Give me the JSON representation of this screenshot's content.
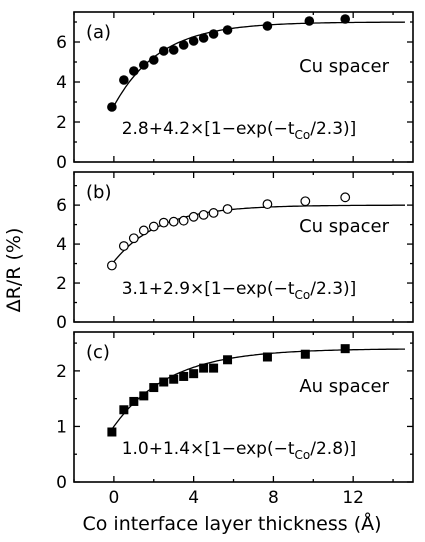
{
  "chart_data": [
    {
      "type": "scatter",
      "panel_label": "(a)",
      "spacer_label": "Cu spacer",
      "fit_label": "2.8+4.2×[1−exp(−t",
      "fit_sub": "Co",
      "fit_tail": "/2.3)]",
      "fit": {
        "a": 2.8,
        "b": 4.2,
        "tau": 2.3
      },
      "marker": "filled-circle",
      "ylim": [
        0,
        7.5
      ],
      "yticks": [
        "0",
        "2",
        "4",
        "6"
      ],
      "yticks_values": [
        0,
        2,
        4,
        6
      ],
      "x": [
        -0.1,
        0.5,
        1.0,
        1.5,
        2.0,
        2.5,
        3.0,
        3.5,
        4.0,
        4.5,
        5.0,
        5.7,
        7.7,
        9.8,
        11.6
      ],
      "y": [
        2.75,
        4.1,
        4.55,
        4.85,
        5.1,
        5.55,
        5.6,
        5.85,
        6.05,
        6.2,
        6.4,
        6.6,
        6.8,
        7.05,
        7.15
      ]
    },
    {
      "type": "scatter",
      "panel_label": "(b)",
      "spacer_label": "Cu spacer",
      "fit_label": "3.1+2.9×[1−exp(−t",
      "fit_sub": "Co",
      "fit_tail": "/2.3)]",
      "fit": {
        "a": 3.1,
        "b": 2.9,
        "tau": 2.3
      },
      "marker": "open-circle",
      "ylim": [
        0,
        7.7
      ],
      "yticks": [
        "0",
        "2",
        "4",
        "6"
      ],
      "yticks_values": [
        0,
        2,
        4,
        6
      ],
      "x": [
        -0.1,
        0.5,
        1.0,
        1.5,
        2.0,
        2.5,
        3.0,
        3.5,
        4.0,
        4.5,
        5.0,
        5.7,
        7.7,
        9.6,
        11.6
      ],
      "y": [
        2.9,
        3.9,
        4.3,
        4.7,
        4.9,
        5.1,
        5.15,
        5.2,
        5.4,
        5.5,
        5.6,
        5.8,
        6.05,
        6.2,
        6.4
      ]
    },
    {
      "type": "scatter",
      "panel_label": "(c)",
      "spacer_label": "Au spacer",
      "fit_label": "1.0+1.4×[1−exp(−t",
      "fit_sub": "Co",
      "fit_tail": "/2.8)]",
      "fit": {
        "a": 1.0,
        "b": 1.4,
        "tau": 2.8
      },
      "marker": "filled-square",
      "ylim": [
        0,
        2.7
      ],
      "yticks": [
        "0",
        "1",
        "2"
      ],
      "yticks_values": [
        0,
        1,
        2
      ],
      "x": [
        -0.1,
        0.5,
        1.0,
        1.5,
        2.0,
        2.5,
        3.0,
        3.5,
        4.0,
        4.5,
        5.0,
        5.7,
        7.7,
        9.6,
        11.6
      ],
      "y": [
        0.9,
        1.3,
        1.45,
        1.55,
        1.7,
        1.8,
        1.85,
        1.9,
        1.95,
        2.05,
        2.05,
        2.2,
        2.25,
        2.3,
        2.4
      ]
    }
  ],
  "axes": {
    "ylabel": "ΔR/R (%)",
    "xlabel": "Co interface layer thickness (Å)",
    "xlim": [
      -2,
      15
    ],
    "xticks": [
      "0",
      "4",
      "8",
      "12"
    ],
    "xticks_values": [
      0,
      4,
      8,
      12
    ]
  }
}
